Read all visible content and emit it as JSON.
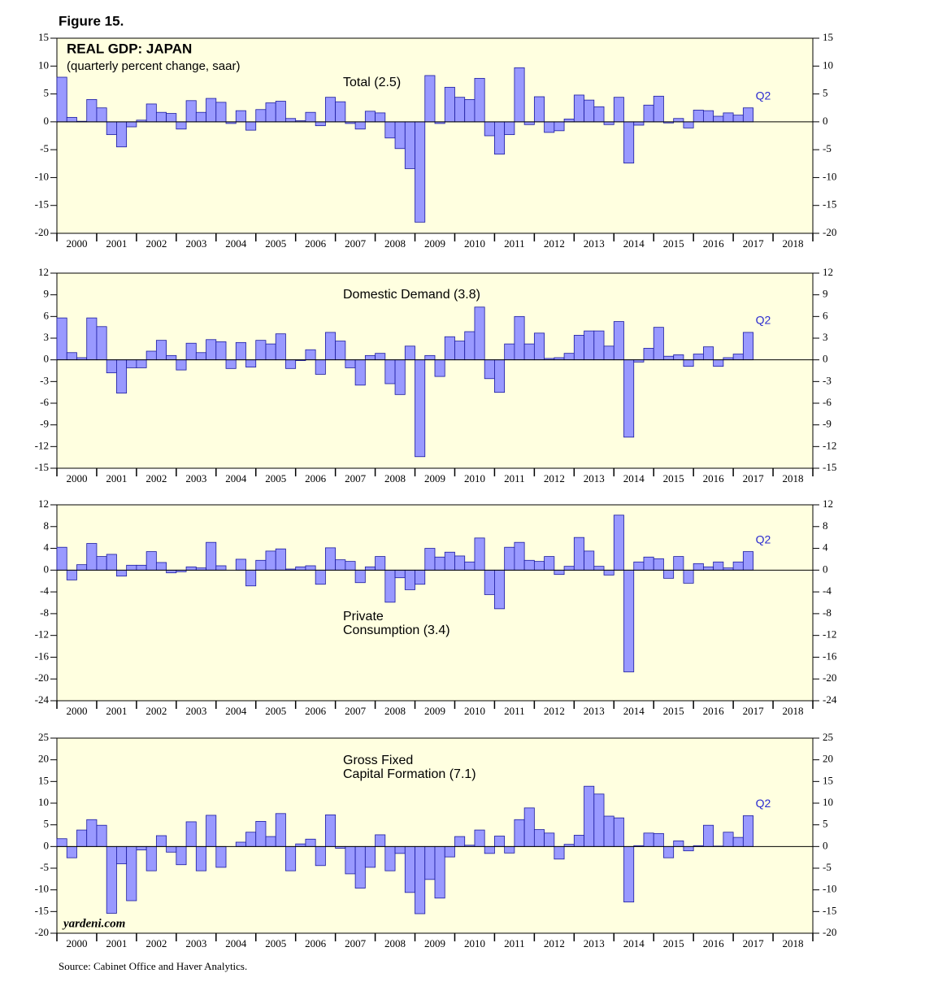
{
  "figure_title": "Figure 15.",
  "source": "Source: Cabinet Office and Haver Analytics.",
  "watermark": "yardeni.com",
  "chart_data": [
    {
      "type": "bar",
      "title": "REAL GDP: JAPAN",
      "subtitle": "(quarterly percent change, saar)",
      "label": [
        "Total (2.5)"
      ],
      "annotation": "Q2",
      "color": "#9999ff",
      "edge_color": "#1a1aa0",
      "x": [
        2000,
        2000.25,
        2000.5,
        2000.75,
        2001,
        2001.25,
        2001.5,
        2001.75,
        2002,
        2002.25,
        2002.5,
        2002.75,
        2003,
        2003.25,
        2003.5,
        2003.75,
        2004,
        2004.25,
        2004.5,
        2004.75,
        2005,
        2005.25,
        2005.5,
        2005.75,
        2006,
        2006.25,
        2006.5,
        2006.75,
        2007,
        2007.25,
        2007.5,
        2007.75,
        2008,
        2008.25,
        2008.5,
        2008.75,
        2009,
        2009.25,
        2009.5,
        2009.75,
        2010,
        2010.25,
        2010.5,
        2010.75,
        2011,
        2011.25,
        2011.5,
        2011.75,
        2012,
        2012.25,
        2012.5,
        2012.75,
        2013,
        2013.25,
        2013.5,
        2013.75,
        2014,
        2014.25,
        2014.5,
        2014.75,
        2015,
        2015.25,
        2015.5,
        2015.75,
        2016,
        2016.25,
        2016.5,
        2016.75,
        2017,
        2017.25
      ],
      "values": [
        8.0,
        0.8,
        0.1,
        4.0,
        2.5,
        -2.3,
        -4.5,
        -0.9,
        0.3,
        3.2,
        1.7,
        1.5,
        -1.3,
        3.8,
        1.7,
        4.2,
        3.5,
        -0.3,
        2.0,
        -1.5,
        2.2,
        3.4,
        3.7,
        0.6,
        0.2,
        1.7,
        -0.7,
        4.4,
        3.6,
        -0.3,
        -1.3,
        1.9,
        1.6,
        -2.9,
        -4.8,
        -8.4,
        -18.0,
        8.3,
        -0.3,
        6.2,
        4.4,
        4.0,
        7.8,
        -2.5,
        -5.8,
        -2.3,
        9.7,
        -0.5,
        4.5,
        -1.9,
        -1.6,
        0.5,
        4.8,
        3.9,
        2.7,
        -0.5,
        4.4,
        -7.4,
        -0.6,
        3.0,
        4.6,
        -0.2,
        0.6,
        -1.1,
        2.1,
        2.0,
        1.0,
        1.6,
        1.2,
        2.5
      ],
      "xlim": [
        2000,
        2019
      ],
      "xticks": [
        2000,
        2001,
        2002,
        2003,
        2004,
        2005,
        2006,
        2007,
        2008,
        2009,
        2010,
        2011,
        2012,
        2013,
        2014,
        2015,
        2016,
        2017,
        2018
      ],
      "ylim": [
        -20,
        15
      ],
      "yticks": [
        -20,
        -15,
        -10,
        -5,
        0,
        5,
        10,
        15
      ]
    },
    {
      "type": "bar",
      "label": [
        "Domestic Demand (3.8)"
      ],
      "annotation": "Q2",
      "color": "#9999ff",
      "edge_color": "#1a1aa0",
      "x": [
        2000,
        2000.25,
        2000.5,
        2000.75,
        2001,
        2001.25,
        2001.5,
        2001.75,
        2002,
        2002.25,
        2002.5,
        2002.75,
        2003,
        2003.25,
        2003.5,
        2003.75,
        2004,
        2004.25,
        2004.5,
        2004.75,
        2005,
        2005.25,
        2005.5,
        2005.75,
        2006,
        2006.25,
        2006.5,
        2006.75,
        2007,
        2007.25,
        2007.5,
        2007.75,
        2008,
        2008.25,
        2008.5,
        2008.75,
        2009,
        2009.25,
        2009.5,
        2009.75,
        2010,
        2010.25,
        2010.5,
        2010.75,
        2011,
        2011.25,
        2011.5,
        2011.75,
        2012,
        2012.25,
        2012.5,
        2012.75,
        2013,
        2013.25,
        2013.5,
        2013.75,
        2014,
        2014.25,
        2014.5,
        2014.75,
        2015,
        2015.25,
        2015.5,
        2015.75,
        2016,
        2016.25,
        2016.5,
        2016.75,
        2017,
        2017.25
      ],
      "values": [
        5.8,
        1.0,
        0.3,
        5.8,
        4.6,
        -1.8,
        -4.6,
        -1.1,
        -1.1,
        1.2,
        2.7,
        0.6,
        -1.4,
        2.3,
        1.0,
        2.8,
        2.5,
        -1.2,
        2.4,
        -1.0,
        2.7,
        2.2,
        3.6,
        -1.2,
        -0.1,
        1.4,
        -2.0,
        3.8,
        2.6,
        -1.1,
        -3.5,
        0.6,
        0.9,
        -3.3,
        -4.8,
        1.9,
        -13.4,
        0.6,
        -2.3,
        3.2,
        2.6,
        3.9,
        7.3,
        -2.6,
        -4.5,
        2.2,
        6.0,
        2.2,
        3.7,
        0.2,
        0.3,
        0.9,
        3.4,
        4.0,
        4.0,
        1.9,
        5.3,
        -10.7,
        -0.3,
        1.6,
        4.5,
        0.5,
        0.7,
        -0.9,
        0.8,
        1.8,
        -0.9,
        0.3,
        0.8,
        3.8
      ],
      "xlim": [
        2000,
        2019
      ],
      "xticks": [
        2000,
        2001,
        2002,
        2003,
        2004,
        2005,
        2006,
        2007,
        2008,
        2009,
        2010,
        2011,
        2012,
        2013,
        2014,
        2015,
        2016,
        2017,
        2018
      ],
      "ylim": [
        -15,
        12
      ],
      "yticks": [
        -15,
        -12,
        -9,
        -6,
        -3,
        0,
        3,
        6,
        9,
        12
      ]
    },
    {
      "type": "bar",
      "label": [
        "Private",
        "Consumption (3.4)"
      ],
      "annotation": "Q2",
      "color": "#9999ff",
      "edge_color": "#1a1aa0",
      "x": [
        2000,
        2000.25,
        2000.5,
        2000.75,
        2001,
        2001.25,
        2001.5,
        2001.75,
        2002,
        2002.25,
        2002.5,
        2002.75,
        2003,
        2003.25,
        2003.5,
        2003.75,
        2004,
        2004.25,
        2004.5,
        2004.75,
        2005,
        2005.25,
        2005.5,
        2005.75,
        2006,
        2006.25,
        2006.5,
        2006.75,
        2007,
        2007.25,
        2007.5,
        2007.75,
        2008,
        2008.25,
        2008.5,
        2008.75,
        2009,
        2009.25,
        2009.5,
        2009.75,
        2010,
        2010.25,
        2010.5,
        2010.75,
        2011,
        2011.25,
        2011.5,
        2011.75,
        2012,
        2012.25,
        2012.5,
        2012.75,
        2013,
        2013.25,
        2013.5,
        2013.75,
        2014,
        2014.25,
        2014.5,
        2014.75,
        2015,
        2015.25,
        2015.5,
        2015.75,
        2016,
        2016.25,
        2016.5,
        2016.75,
        2017,
        2017.25
      ],
      "values": [
        4.2,
        -1.8,
        1.0,
        4.9,
        2.5,
        2.9,
        -1.1,
        0.9,
        0.9,
        3.4,
        1.4,
        -0.5,
        -0.3,
        0.6,
        0.4,
        5.1,
        0.8,
        0,
        2.0,
        -2.9,
        1.8,
        3.5,
        3.9,
        0.2,
        0.6,
        0.8,
        -2.6,
        4.1,
        1.9,
        1.6,
        -2.3,
        0.6,
        2.5,
        -5.9,
        -1.4,
        -3.6,
        -2.6,
        4.0,
        2.4,
        3.3,
        2.6,
        1.5,
        5.9,
        -4.5,
        -7.1,
        4.2,
        5.1,
        1.8,
        1.6,
        2.5,
        -0.8,
        0.7,
        6.0,
        3.5,
        0.7,
        -0.9,
        10.1,
        -18.7,
        1.5,
        2.4,
        2.1,
        -1.5,
        2.5,
        -2.4,
        1.2,
        0.6,
        1.5,
        0.4,
        1.5,
        3.4
      ],
      "xlim": [
        2000,
        2019
      ],
      "xticks": [
        2000,
        2001,
        2002,
        2003,
        2004,
        2005,
        2006,
        2007,
        2008,
        2009,
        2010,
        2011,
        2012,
        2013,
        2014,
        2015,
        2016,
        2017,
        2018
      ],
      "ylim": [
        -24,
        12
      ],
      "yticks": [
        -24,
        -20,
        -16,
        -12,
        -8,
        -4,
        0,
        4,
        8,
        12
      ]
    },
    {
      "type": "bar",
      "label": [
        "Gross Fixed",
        "Capital Formation (7.1)"
      ],
      "annotation": "Q2",
      "color": "#9999ff",
      "edge_color": "#1a1aa0",
      "x": [
        2000,
        2000.25,
        2000.5,
        2000.75,
        2001,
        2001.25,
        2001.5,
        2001.75,
        2002,
        2002.25,
        2002.5,
        2002.75,
        2003,
        2003.25,
        2003.5,
        2003.75,
        2004,
        2004.25,
        2004.5,
        2004.75,
        2005,
        2005.25,
        2005.5,
        2005.75,
        2006,
        2006.25,
        2006.5,
        2006.75,
        2007,
        2007.25,
        2007.5,
        2007.75,
        2008,
        2008.25,
        2008.5,
        2008.75,
        2009,
        2009.25,
        2009.5,
        2009.75,
        2010,
        2010.25,
        2010.5,
        2010.75,
        2011,
        2011.25,
        2011.5,
        2011.75,
        2012,
        2012.25,
        2012.5,
        2012.75,
        2013,
        2013.25,
        2013.5,
        2013.75,
        2014,
        2014.25,
        2014.5,
        2014.75,
        2015,
        2015.25,
        2015.5,
        2015.75,
        2016,
        2016.25,
        2016.5,
        2016.75,
        2017,
        2017.25
      ],
      "values": [
        1.8,
        -2.6,
        3.8,
        6.2,
        4.9,
        -15.4,
        -4.0,
        -12.5,
        -0.8,
        -5.6,
        2.5,
        -1.3,
        -4.2,
        5.7,
        -5.6,
        7.2,
        -4.8,
        0,
        1.0,
        3.3,
        5.8,
        2.3,
        7.6,
        -5.6,
        0.6,
        1.7,
        -4.4,
        7.3,
        -0.4,
        -6.3,
        -9.6,
        -4.8,
        2.7,
        -5.6,
        -1.6,
        -10.6,
        -15.5,
        -7.6,
        -11.9,
        -2.4,
        2.3,
        0.3,
        3.8,
        -1.6,
        2.4,
        -1.5,
        6.2,
        8.9,
        3.9,
        3.1,
        -2.9,
        0.5,
        2.6,
        13.9,
        12.1,
        7.0,
        6.6,
        -12.8,
        0.2,
        3.1,
        3.0,
        -2.6,
        1.3,
        -1.0,
        0.2,
        4.9,
        0.1,
        3.3,
        2.1,
        7.1
      ],
      "xlim": [
        2000,
        2019
      ],
      "xticks": [
        2000,
        2001,
        2002,
        2003,
        2004,
        2005,
        2006,
        2007,
        2008,
        2009,
        2010,
        2011,
        2012,
        2013,
        2014,
        2015,
        2016,
        2017,
        2018
      ],
      "ylim": [
        -20,
        25
      ],
      "yticks": [
        -20,
        -15,
        -10,
        -5,
        0,
        5,
        10,
        15,
        20,
        25
      ]
    }
  ]
}
